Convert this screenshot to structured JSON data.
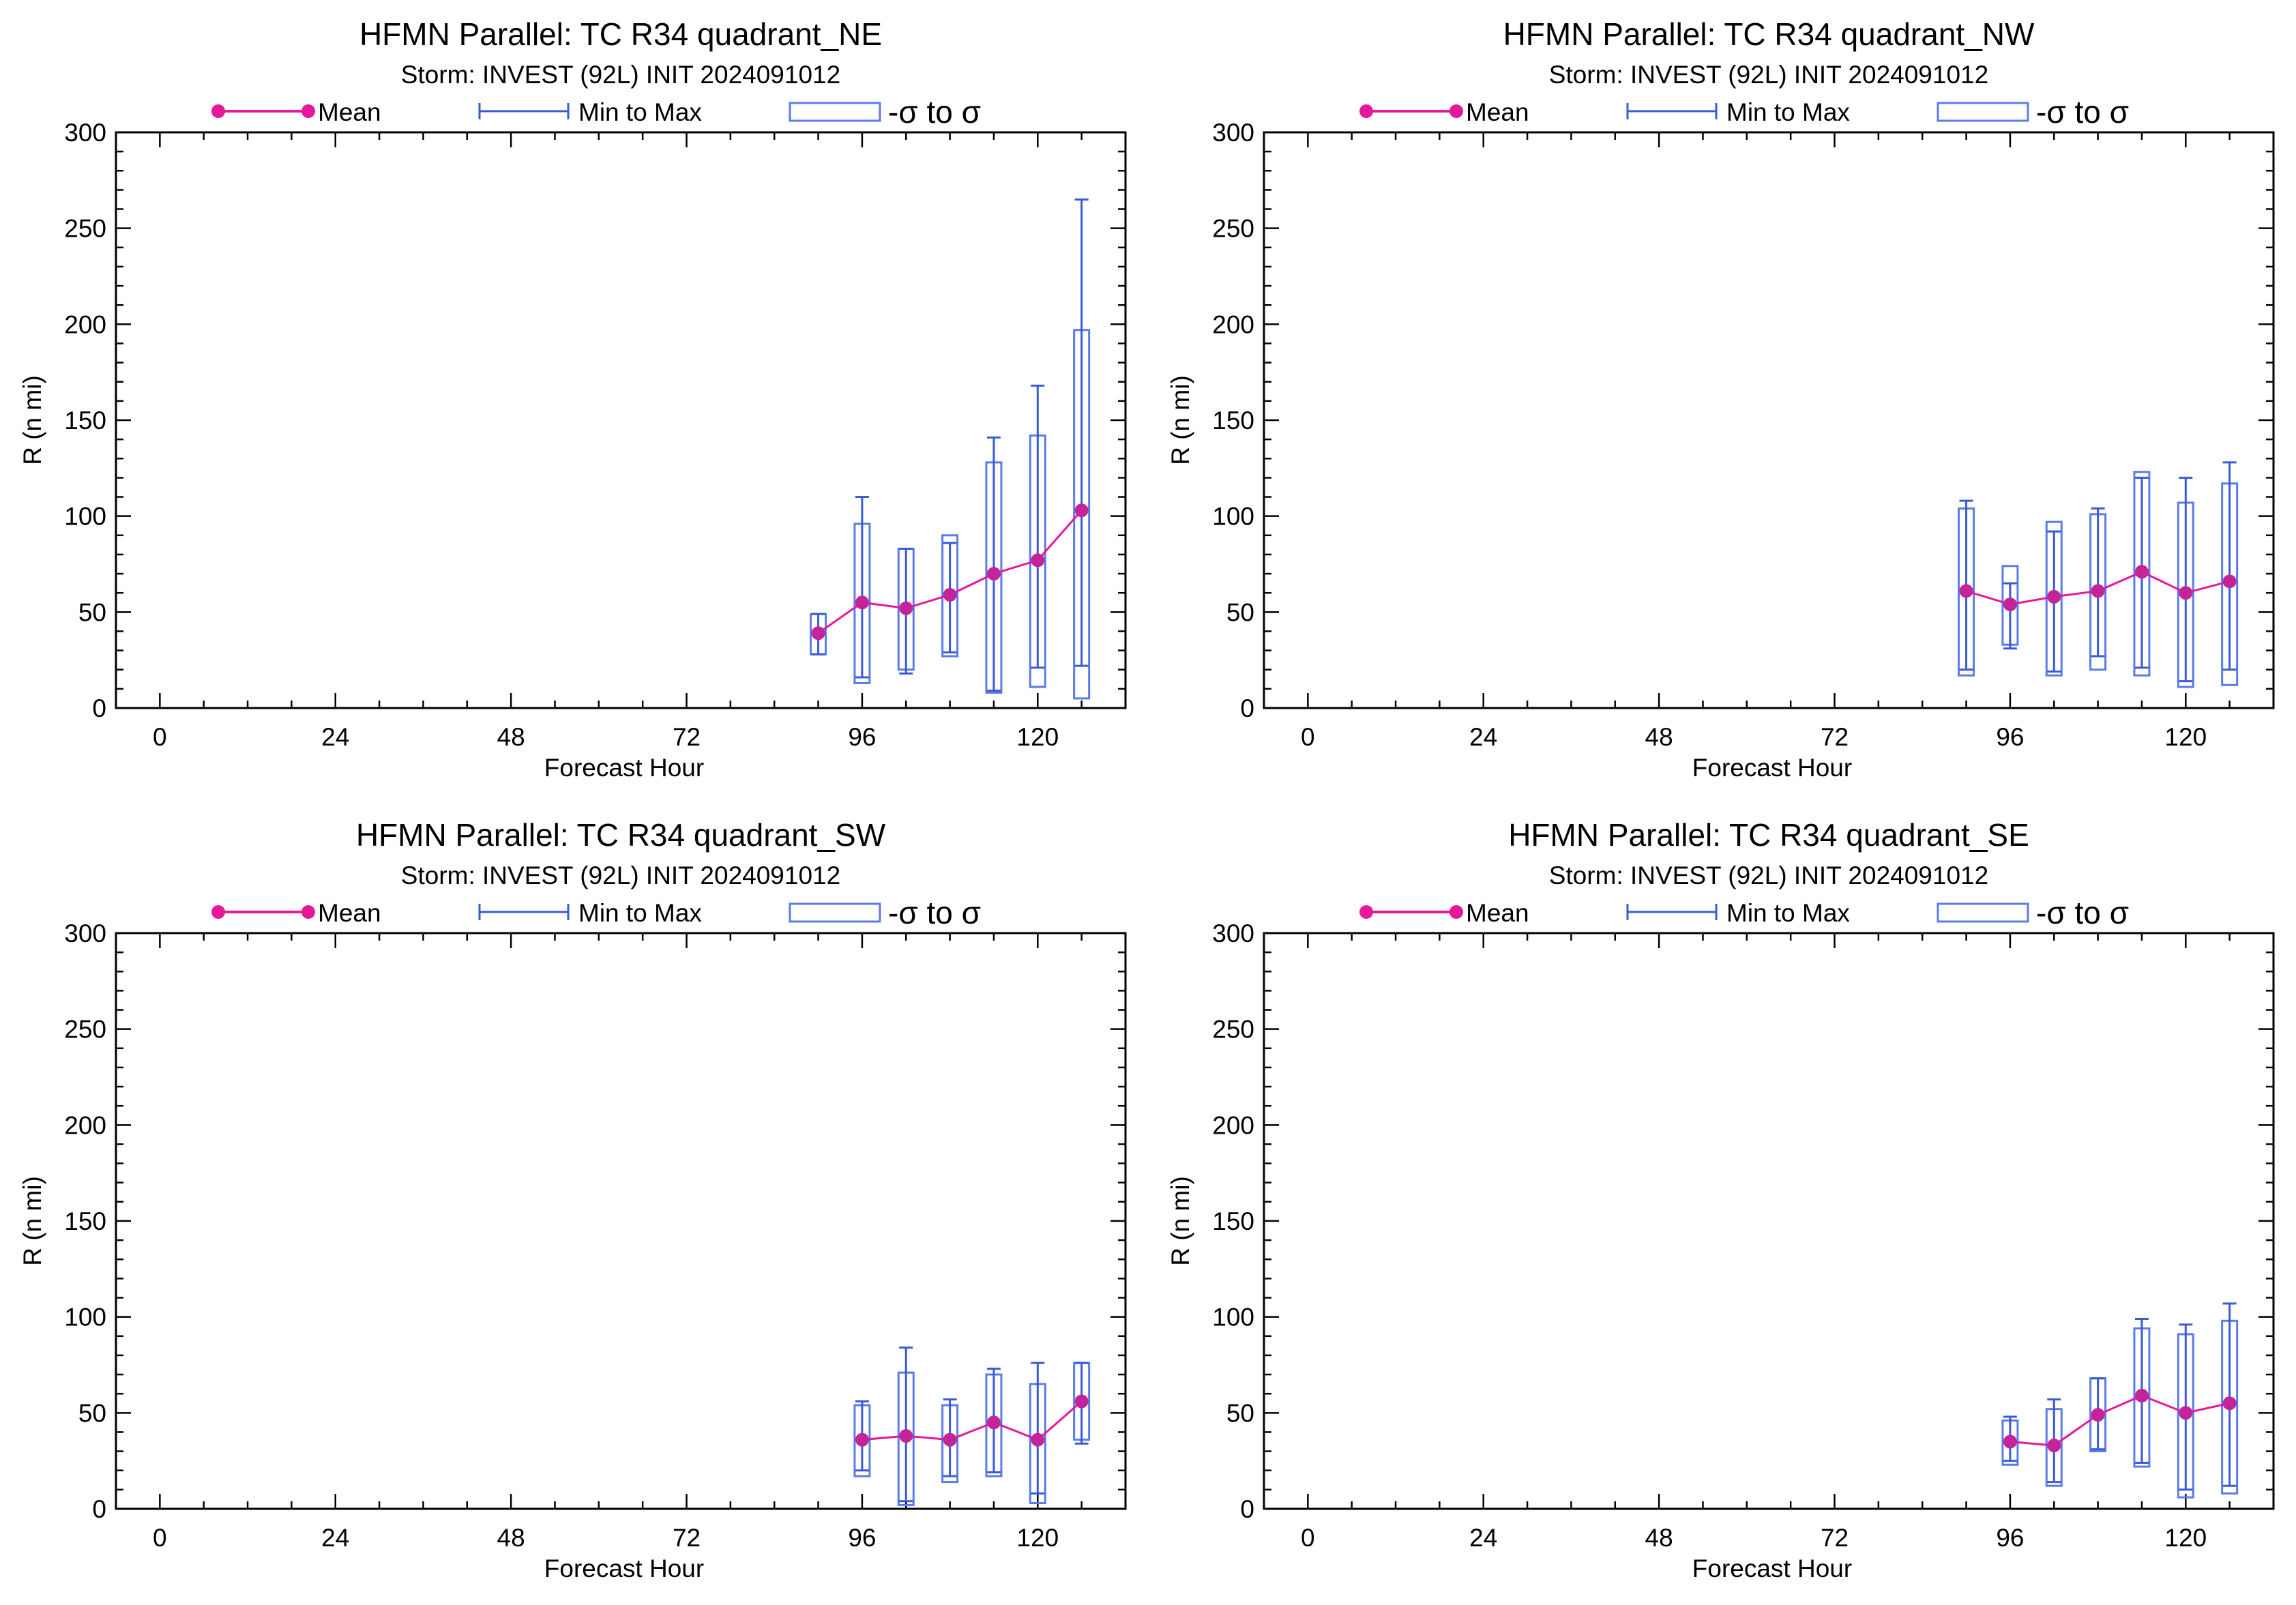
{
  "colors": {
    "mean": "#e6199b",
    "mean_marker": "#c4249a",
    "range": "#3a5bd6",
    "box": "#5b7be8",
    "axis": "#000000"
  },
  "chart_data": [
    {
      "type": "box",
      "title": "HFMN Parallel: TC  R34 quadrant_NE",
      "subtitle": "Storm: INVEST (92L) INIT 2024091012",
      "xlabel": "Forecast Hour",
      "ylabel": "R (n mi)",
      "xlim": [
        -6,
        132
      ],
      "ylim": [
        0,
        300
      ],
      "xticks": [
        0,
        24,
        48,
        72,
        96,
        120
      ],
      "yticks": [
        0,
        50,
        100,
        150,
        200,
        250,
        300
      ],
      "legend": {
        "mean": "Mean",
        "range": "Min to Max",
        "box": "-σ to σ"
      },
      "x": [
        90,
        96,
        102,
        108,
        114,
        120,
        126
      ],
      "mean": [
        39,
        55,
        52,
        59,
        70,
        77,
        103
      ],
      "min": [
        28,
        16,
        18,
        29,
        9,
        21,
        22
      ],
      "max": [
        49,
        110,
        83,
        86,
        141,
        168,
        265
      ],
      "sd_low": [
        28,
        13,
        20,
        27,
        8,
        11,
        5
      ],
      "sd_high": [
        49,
        96,
        83,
        90,
        128,
        142,
        197
      ]
    },
    {
      "type": "box",
      "title": "HFMN Parallel: TC  R34 quadrant_NW",
      "subtitle": "Storm: INVEST (92L) INIT 2024091012",
      "xlabel": "Forecast Hour",
      "ylabel": "R (n mi)",
      "xlim": [
        -6,
        132
      ],
      "ylim": [
        0,
        300
      ],
      "xticks": [
        0,
        24,
        48,
        72,
        96,
        120
      ],
      "yticks": [
        0,
        50,
        100,
        150,
        200,
        250,
        300
      ],
      "legend": {
        "mean": "Mean",
        "range": "Min to Max",
        "box": "-σ to σ"
      },
      "x": [
        90,
        96,
        102,
        108,
        114,
        120,
        126
      ],
      "mean": [
        61,
        54,
        58,
        61,
        71,
        60,
        66
      ],
      "min": [
        20,
        31,
        19,
        27,
        21,
        14,
        20
      ],
      "max": [
        108,
        65,
        92,
        104,
        120,
        120,
        128
      ],
      "sd_low": [
        17,
        33,
        17,
        20,
        17,
        11,
        12
      ],
      "sd_high": [
        104,
        74,
        97,
        101,
        123,
        107,
        117
      ]
    },
    {
      "type": "box",
      "title": "HFMN Parallel: TC  R34 quadrant_SW",
      "subtitle": "Storm: INVEST (92L) INIT 2024091012",
      "xlabel": "Forecast Hour",
      "ylabel": "R (n mi)",
      "xlim": [
        -6,
        132
      ],
      "ylim": [
        0,
        300
      ],
      "xticks": [
        0,
        24,
        48,
        72,
        96,
        120
      ],
      "yticks": [
        0,
        50,
        100,
        150,
        200,
        250,
        300
      ],
      "legend": {
        "mean": "Mean",
        "range": "Min to Max",
        "box": "-σ to σ"
      },
      "x": [
        96,
        102,
        108,
        114,
        120,
        126
      ],
      "mean": [
        36,
        38,
        36,
        45,
        36,
        56
      ],
      "min": [
        20,
        4,
        17,
        19,
        8,
        34
      ],
      "max": [
        56,
        84,
        57,
        73,
        76,
        76
      ],
      "sd_low": [
        17,
        2,
        14,
        17,
        3,
        36
      ],
      "sd_high": [
        54,
        71,
        54,
        70,
        65,
        76
      ]
    },
    {
      "type": "box",
      "title": "HFMN Parallel: TC  R34 quadrant_SE",
      "subtitle": "Storm: INVEST (92L) INIT 2024091012",
      "xlabel": "Forecast Hour",
      "ylabel": "R (n mi)",
      "xlim": [
        -6,
        132
      ],
      "ylim": [
        0,
        300
      ],
      "xticks": [
        0,
        24,
        48,
        72,
        96,
        120
      ],
      "yticks": [
        0,
        50,
        100,
        150,
        200,
        250,
        300
      ],
      "legend": {
        "mean": "Mean",
        "range": "Min to Max",
        "box": "-σ to σ"
      },
      "x": [
        96,
        102,
        108,
        114,
        120,
        126
      ],
      "mean": [
        35,
        33,
        49,
        59,
        50,
        55
      ],
      "min": [
        25,
        14,
        31,
        24,
        10,
        12
      ],
      "max": [
        48,
        57,
        68,
        99,
        96,
        107
      ],
      "sd_low": [
        23,
        12,
        30,
        22,
        6,
        8
      ],
      "sd_high": [
        46,
        52,
        68,
        94,
        91,
        98
      ]
    }
  ]
}
